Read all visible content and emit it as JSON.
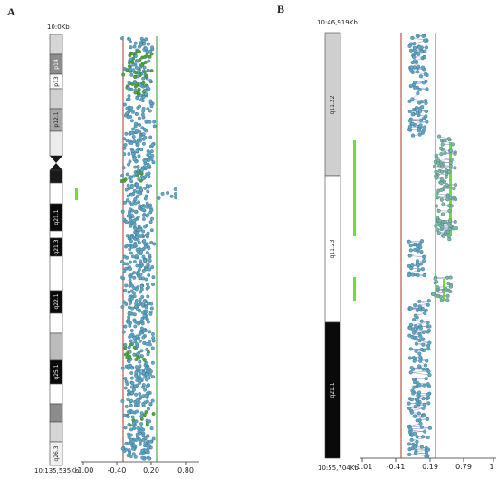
{
  "panels": [
    {
      "label": "A",
      "top_coord": "10:0Kb",
      "bottom_coord": "10:135,535Kb",
      "bands": [
        "p14",
        "p13",
        "p12.1",
        "q21.1",
        "q21.3",
        "q22.1",
        "q25.1",
        "q26.3"
      ],
      "axis": {
        "ticks": [
          "-1.00",
          "-0.40",
          "0.20",
          "0.80"
        ],
        "lower_line": -0.4,
        "upper_line": 0.2
      }
    },
    {
      "label": "B",
      "top_coord": "10:46,919Kb",
      "bottom_coord": "10:55,704Kb",
      "bands": [
        "q11.22",
        "q11.23",
        "q21.1"
      ],
      "axis": {
        "ticks": [
          "-1.01",
          "-0.41",
          "0.19",
          "0.79",
          "1"
        ],
        "lower_line": -0.41,
        "upper_line": 0.19
      }
    }
  ],
  "colors": {
    "dark_band": "#0a0a0a",
    "gray_band": "#9a9a9a",
    "light_band": "#d6d6d6",
    "point_blue": "#5fa8c8",
    "point_green": "#4ea82a",
    "loss_line": "#a33a2a",
    "gain_line": "#2c9a2c",
    "gain_bar": "#6ee030"
  }
}
